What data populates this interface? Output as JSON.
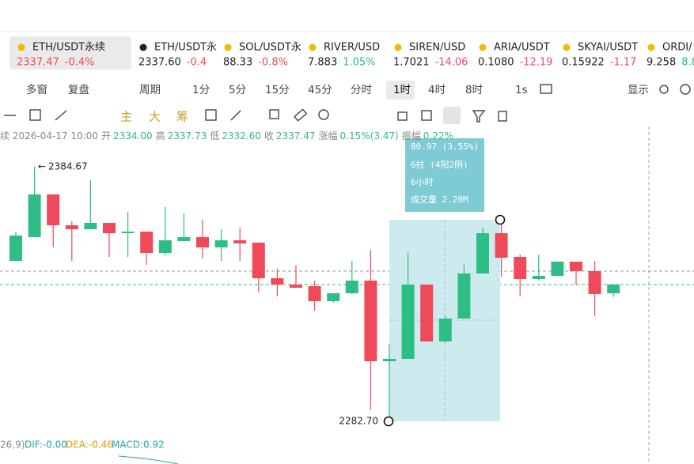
{
  "tabs": [
    {
      "symbol": "ETH/USDT永续",
      "price": "2337.47",
      "change": "-0.4%"
    },
    {
      "symbol": "ETH/USDT永",
      "price": "2337.60",
      "change": "-0.4"
    },
    {
      "symbol": "SOL/USDT永",
      "price": "88.33",
      "change": "-0.8%"
    },
    {
      "symbol": "RIVER/USD",
      "price": "7.883",
      "change": "1.05%"
    },
    {
      "symbol": "SIREN/USD",
      "price": "1.7021",
      "change": "-14.06"
    },
    {
      "symbol": "ARIA/USDT",
      "price": "0.1080",
      "change": "-12.19"
    },
    {
      "symbol": "SKYAI/USDT",
      "price": "0.15922",
      "change": "-1.17"
    },
    {
      "symbol": "ORDI/",
      "price": "9.258",
      "change": "8.8"
    }
  ],
  "toolbar": {
    "items": [
      "多窗",
      "复盘",
      "周期",
      "1分",
      "5分",
      "15分",
      "45分",
      "分时",
      "1时",
      "4时",
      "8时",
      "1s",
      "显示"
    ],
    "active": "1时",
    "drawing": [
      "主",
      "大",
      "筹"
    ]
  },
  "ohlc": {
    "prefix": "续 2026-04-17 10:00",
    "fields": [
      [
        "开",
        "2334.00"
      ],
      [
        "高",
        "2337.73"
      ],
      [
        "低",
        "2332.60"
      ],
      [
        "收",
        "2337.47"
      ],
      [
        "涨幅",
        "0.15%(3.47)"
      ],
      [
        "振幅",
        "0.22%"
      ]
    ]
  },
  "measure": {
    "change": "80.97 (3.55%)",
    "bars": "6柱 (4阳2阴)",
    "duration": "6小时",
    "volume": "成交量 2.20M"
  },
  "indicator": {
    "params": "26,9)",
    "dif": "DIF:-0.00",
    "dea": "DEA:-0.46",
    "macd": "MACD:0.92"
  },
  "chart_data": {
    "type": "candlestick",
    "ylim": [
      2278.9,
      2400.82
    ],
    "up_color": "#2ebd85",
    "down_color": "#ef4a5a",
    "high_label": "2384.67",
    "low_label": "2282.70",
    "open": [
      2346.99,
      2356.49,
      2373.59,
      2361.24,
      2359.65,
      2362.19,
      2358.07,
      2358.7,
      2350.15,
      2354.9,
      2356.49,
      2352.37,
      2355.22,
      2354.27,
      2340.02,
      2337.48,
      2336.85,
      2330.84,
      2334.0,
      2339.07,
      2306.77,
      2307.72,
      2337.48,
      2314.69,
      2323.87,
      2341.92,
      2358.07,
      2348.57,
      2339.7,
      2340.97,
      2346.67,
      2342.87,
      2334.0
    ],
    "high": [
      2358.7,
      2384.67,
      2373.59,
      2362.82,
      2379.29,
      2362.19,
      2366.62,
      2358.7,
      2368.52,
      2365.99,
      2363.45,
      2359.65,
      2360.29,
      2354.27,
      2343.82,
      2345.4,
      2339.07,
      2334.0,
      2346.99,
      2351.42,
      2313.74,
      2350.15,
      2337.48,
      2324.82,
      2345.4,
      2360.29,
      2363.45,
      2349.52,
      2349.52,
      2346.67,
      2346.67,
      2346.99,
      2337.73
    ],
    "low": [
      2346.99,
      2356.49,
      2352.37,
      2346.99,
      2359.65,
      2348.57,
      2348.57,
      2345.4,
      2349.2,
      2354.9,
      2347.94,
      2346.99,
      2346.99,
      2334.32,
      2332.74,
      2336.22,
      2327.04,
      2330.2,
      2333.69,
      2287.45,
      2282.7,
      2307.72,
      2314.69,
      2314.37,
      2323.87,
      2341.92,
      2340.65,
      2332.74,
      2339.07,
      2340.97,
      2337.48,
      2324.82,
      2332.6
    ],
    "close": [
      2357.12,
      2373.59,
      2361.24,
      2359.65,
      2362.19,
      2358.07,
      2358.7,
      2350.15,
      2355.22,
      2356.49,
      2352.37,
      2355.22,
      2353.95,
      2340.02,
      2337.48,
      2336.22,
      2330.84,
      2334.0,
      2339.07,
      2306.77,
      2307.72,
      2337.48,
      2314.69,
      2323.87,
      2341.92,
      2358.07,
      2348.25,
      2339.7,
      2340.97,
      2346.67,
      2342.87,
      2333.69,
      2337.47
    ]
  }
}
